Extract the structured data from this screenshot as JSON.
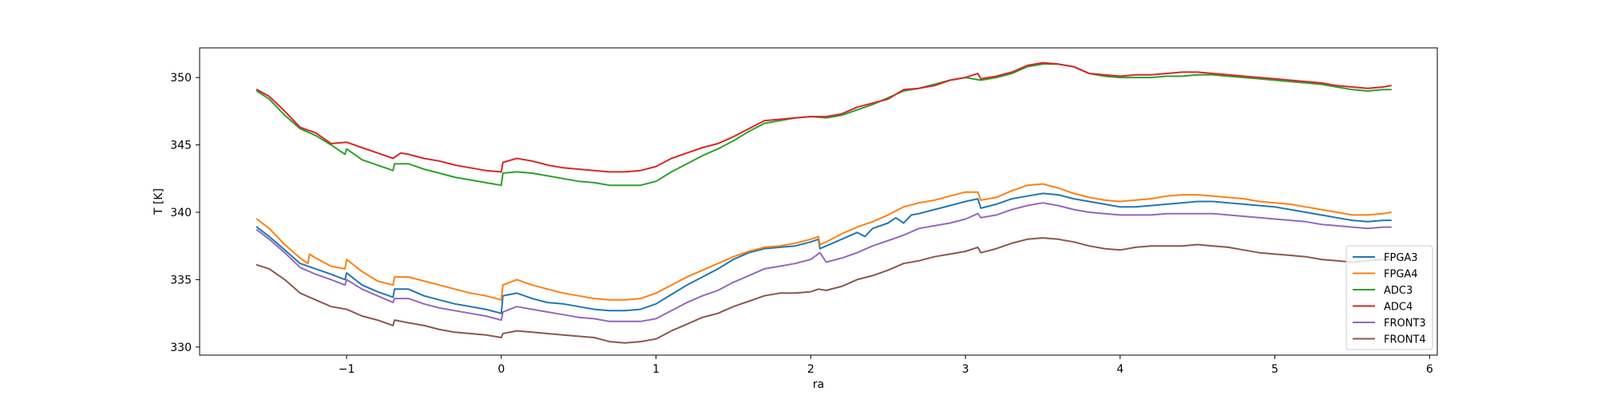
{
  "chart_data": {
    "type": "line",
    "title": "",
    "xlabel": "ra",
    "ylabel": "T [K]",
    "xlim": [
      -1.95,
      6.05
    ],
    "ylim": [
      329.4,
      352.2
    ],
    "xticks": [
      -1,
      0,
      1,
      2,
      3,
      4,
      5,
      6
    ],
    "xtick_labels": [
      "−1",
      "0",
      "1",
      "2",
      "3",
      "4",
      "5",
      "6"
    ],
    "yticks": [
      330,
      335,
      340,
      345,
      350
    ],
    "ytick_labels": [
      "330",
      "335",
      "340",
      "345",
      "350"
    ],
    "grid": false,
    "legend_position": "lower-right",
    "series": [
      {
        "name": "FPGA3",
        "color": "#1f77b4",
        "x": [
          -1.58,
          -1.5,
          -1.4,
          -1.3,
          -1.2,
          -1.1,
          -1.01,
          -1.0,
          -0.9,
          -0.8,
          -0.7,
          -0.69,
          -0.6,
          -0.5,
          -0.4,
          -0.3,
          -0.2,
          -0.1,
          0.0,
          0.01,
          0.1,
          0.2,
          0.3,
          0.4,
          0.5,
          0.6,
          0.7,
          0.8,
          0.9,
          1.0,
          1.1,
          1.2,
          1.3,
          1.4,
          1.5,
          1.6,
          1.7,
          1.8,
          1.9,
          2.0,
          2.05,
          2.06,
          2.1,
          2.2,
          2.3,
          2.35,
          2.4,
          2.5,
          2.55,
          2.6,
          2.65,
          2.7,
          2.8,
          2.9,
          3.0,
          3.08,
          3.1,
          3.2,
          3.3,
          3.4,
          3.5,
          3.6,
          3.7,
          3.8,
          3.9,
          4.0,
          4.1,
          4.2,
          4.3,
          4.4,
          4.5,
          4.6,
          4.7,
          4.8,
          4.9,
          5.0,
          5.1,
          5.2,
          5.3,
          5.4,
          5.5,
          5.6,
          5.7,
          5.75
        ],
        "y": [
          338.9,
          338.2,
          337.2,
          336.2,
          335.8,
          335.4,
          335.0,
          335.5,
          334.6,
          334.1,
          333.7,
          334.3,
          334.3,
          333.8,
          333.5,
          333.2,
          333.0,
          332.8,
          332.5,
          333.8,
          334.0,
          333.6,
          333.3,
          333.2,
          333.0,
          332.8,
          332.7,
          332.7,
          332.8,
          333.2,
          333.9,
          334.6,
          335.2,
          335.8,
          336.5,
          337.0,
          337.3,
          337.4,
          337.5,
          337.8,
          338.0,
          337.3,
          337.5,
          338.0,
          338.5,
          338.2,
          338.8,
          339.2,
          339.6,
          339.2,
          339.8,
          339.9,
          340.2,
          340.5,
          340.8,
          341.0,
          340.3,
          340.6,
          341.0,
          341.2,
          341.4,
          341.3,
          341.0,
          340.8,
          340.6,
          340.4,
          340.4,
          340.5,
          340.6,
          340.7,
          340.8,
          340.8,
          340.7,
          340.6,
          340.5,
          340.4,
          340.2,
          340.0,
          339.8,
          339.6,
          339.4,
          339.3,
          339.4,
          339.4
        ]
      },
      {
        "name": "FPGA4",
        "color": "#ff7f0e",
        "x": [
          -1.58,
          -1.5,
          -1.4,
          -1.3,
          -1.25,
          -1.24,
          -1.2,
          -1.1,
          -1.01,
          -1.0,
          -0.9,
          -0.8,
          -0.7,
          -0.69,
          -0.6,
          -0.5,
          -0.4,
          -0.3,
          -0.2,
          -0.1,
          0.0,
          0.01,
          0.1,
          0.2,
          0.3,
          0.4,
          0.5,
          0.6,
          0.7,
          0.8,
          0.9,
          1.0,
          1.1,
          1.2,
          1.3,
          1.4,
          1.5,
          1.6,
          1.7,
          1.8,
          1.9,
          2.0,
          2.05,
          2.06,
          2.1,
          2.2,
          2.3,
          2.4,
          2.5,
          2.6,
          2.7,
          2.8,
          2.9,
          3.0,
          3.08,
          3.1,
          3.2,
          3.3,
          3.4,
          3.5,
          3.6,
          3.7,
          3.8,
          3.9,
          4.0,
          4.1,
          4.2,
          4.3,
          4.4,
          4.5,
          4.6,
          4.7,
          4.8,
          4.9,
          5.0,
          5.1,
          5.2,
          5.3,
          5.4,
          5.5,
          5.6,
          5.7,
          5.75
        ],
        "y": [
          339.5,
          338.8,
          337.6,
          336.6,
          336.2,
          336.9,
          336.6,
          336.0,
          335.8,
          336.5,
          335.6,
          334.9,
          334.6,
          335.2,
          335.2,
          334.9,
          334.6,
          334.3,
          334.0,
          333.8,
          333.5,
          334.6,
          335.0,
          334.6,
          334.3,
          334.0,
          333.8,
          333.6,
          333.5,
          333.5,
          333.6,
          334.0,
          334.6,
          335.2,
          335.7,
          336.2,
          336.7,
          337.1,
          337.4,
          337.5,
          337.7,
          338.0,
          338.2,
          337.6,
          337.8,
          338.4,
          338.9,
          339.3,
          339.8,
          340.4,
          340.7,
          340.9,
          341.2,
          341.5,
          341.5,
          340.9,
          341.1,
          341.6,
          342.0,
          342.1,
          341.8,
          341.4,
          341.1,
          340.9,
          340.8,
          340.9,
          341.0,
          341.2,
          341.3,
          341.3,
          341.2,
          341.1,
          341.0,
          340.8,
          340.7,
          340.6,
          340.4,
          340.2,
          340.0,
          339.8,
          339.8,
          339.9,
          340.0
        ]
      },
      {
        "name": "ADC3",
        "color": "#2ca02c",
        "x": [
          -1.58,
          -1.5,
          -1.4,
          -1.3,
          -1.2,
          -1.1,
          -1.01,
          -1.0,
          -0.9,
          -0.8,
          -0.7,
          -0.69,
          -0.6,
          -0.5,
          -0.4,
          -0.3,
          -0.2,
          -0.1,
          0.0,
          0.01,
          0.1,
          0.2,
          0.3,
          0.4,
          0.5,
          0.6,
          0.7,
          0.8,
          0.9,
          1.0,
          1.1,
          1.2,
          1.3,
          1.4,
          1.5,
          1.6,
          1.7,
          1.8,
          1.9,
          2.0,
          2.1,
          2.2,
          2.3,
          2.4,
          2.5,
          2.6,
          2.7,
          2.8,
          2.9,
          3.0,
          3.1,
          3.2,
          3.3,
          3.4,
          3.5,
          3.6,
          3.7,
          3.8,
          3.9,
          4.0,
          4.1,
          4.2,
          4.3,
          4.4,
          4.5,
          4.6,
          4.7,
          4.8,
          4.9,
          5.0,
          5.1,
          5.2,
          5.3,
          5.4,
          5.5,
          5.6,
          5.7,
          5.75
        ],
        "y": [
          349.0,
          348.4,
          347.2,
          346.2,
          345.7,
          345.0,
          344.3,
          344.7,
          343.9,
          343.5,
          343.1,
          343.6,
          343.6,
          343.2,
          342.9,
          342.6,
          342.4,
          342.2,
          342.0,
          342.9,
          343.0,
          342.9,
          342.7,
          342.5,
          342.3,
          342.2,
          342.0,
          342.0,
          342.0,
          342.3,
          343.0,
          343.6,
          344.2,
          344.7,
          345.3,
          346.0,
          346.6,
          346.8,
          347.0,
          347.1,
          347.0,
          347.2,
          347.6,
          348.0,
          348.5,
          349.0,
          349.2,
          349.5,
          349.8,
          350.0,
          349.8,
          350.0,
          350.3,
          350.8,
          351.0,
          351.0,
          350.8,
          350.3,
          350.1,
          350.0,
          350.0,
          350.0,
          350.1,
          350.1,
          350.2,
          350.2,
          350.1,
          350.0,
          349.9,
          349.8,
          349.7,
          349.6,
          349.5,
          349.3,
          349.1,
          349.0,
          349.1,
          349.1
        ]
      },
      {
        "name": "ADC4",
        "color": "#d62728",
        "x": [
          -1.58,
          -1.5,
          -1.4,
          -1.3,
          -1.2,
          -1.1,
          -1.0,
          -0.9,
          -0.8,
          -0.7,
          -0.65,
          -0.6,
          -0.5,
          -0.4,
          -0.3,
          -0.2,
          -0.1,
          0.0,
          0.01,
          0.1,
          0.2,
          0.3,
          0.4,
          0.5,
          0.6,
          0.7,
          0.8,
          0.9,
          1.0,
          1.1,
          1.2,
          1.3,
          1.4,
          1.5,
          1.6,
          1.7,
          1.8,
          1.9,
          2.0,
          2.1,
          2.2,
          2.3,
          2.4,
          2.5,
          2.6,
          2.7,
          2.8,
          2.9,
          3.0,
          3.08,
          3.1,
          3.2,
          3.3,
          3.4,
          3.5,
          3.6,
          3.7,
          3.8,
          3.9,
          4.0,
          4.1,
          4.2,
          4.3,
          4.4,
          4.5,
          4.6,
          4.7,
          4.8,
          4.9,
          5.0,
          5.1,
          5.2,
          5.3,
          5.4,
          5.5,
          5.6,
          5.7,
          5.75
        ],
        "y": [
          349.1,
          348.6,
          347.5,
          346.3,
          345.9,
          345.1,
          345.2,
          344.8,
          344.4,
          344.0,
          344.4,
          344.3,
          344.0,
          343.8,
          343.5,
          343.3,
          343.1,
          343.0,
          343.7,
          344.0,
          343.8,
          343.5,
          343.3,
          343.2,
          343.1,
          343.0,
          343.0,
          343.1,
          343.4,
          344.0,
          344.4,
          344.8,
          345.1,
          345.6,
          346.2,
          346.8,
          346.9,
          347.0,
          347.1,
          347.1,
          347.3,
          347.8,
          348.1,
          348.4,
          349.1,
          349.2,
          349.4,
          349.8,
          350.0,
          350.3,
          349.9,
          350.1,
          350.4,
          350.9,
          351.1,
          351.0,
          350.8,
          350.3,
          350.2,
          350.1,
          350.2,
          350.2,
          350.3,
          350.4,
          350.4,
          350.3,
          350.2,
          350.1,
          350.0,
          349.9,
          349.8,
          349.7,
          349.6,
          349.4,
          349.3,
          349.2,
          349.3,
          349.4
        ]
      },
      {
        "name": "FRONT3",
        "color": "#9467bd",
        "x": [
          -1.58,
          -1.5,
          -1.4,
          -1.3,
          -1.2,
          -1.1,
          -1.01,
          -1.0,
          -0.9,
          -0.8,
          -0.7,
          -0.69,
          -0.6,
          -0.5,
          -0.4,
          -0.3,
          -0.2,
          -0.1,
          0.0,
          0.01,
          0.1,
          0.2,
          0.3,
          0.4,
          0.5,
          0.6,
          0.7,
          0.8,
          0.9,
          1.0,
          1.1,
          1.2,
          1.3,
          1.4,
          1.5,
          1.6,
          1.7,
          1.8,
          1.9,
          2.0,
          2.06,
          2.1,
          2.2,
          2.3,
          2.4,
          2.5,
          2.6,
          2.7,
          2.8,
          2.9,
          3.0,
          3.08,
          3.1,
          3.2,
          3.3,
          3.4,
          3.5,
          3.6,
          3.7,
          3.8,
          3.9,
          4.0,
          4.1,
          4.2,
          4.3,
          4.4,
          4.5,
          4.6,
          4.7,
          4.8,
          4.9,
          5.0,
          5.1,
          5.2,
          5.3,
          5.4,
          5.5,
          5.6,
          5.7,
          5.75
        ],
        "y": [
          338.7,
          338.0,
          337.0,
          335.9,
          335.4,
          335.0,
          334.6,
          335.0,
          334.3,
          333.8,
          333.3,
          333.6,
          333.6,
          333.2,
          332.9,
          332.7,
          332.5,
          332.3,
          332.0,
          332.6,
          333.0,
          332.8,
          332.6,
          332.4,
          332.2,
          332.1,
          331.9,
          331.9,
          331.9,
          332.1,
          332.7,
          333.3,
          333.8,
          334.2,
          334.8,
          335.3,
          335.8,
          336.0,
          336.2,
          336.5,
          337.0,
          336.3,
          336.6,
          337.0,
          337.5,
          337.9,
          338.3,
          338.8,
          339.0,
          339.2,
          339.5,
          339.9,
          339.6,
          339.8,
          340.2,
          340.5,
          340.7,
          340.5,
          340.2,
          340.0,
          339.9,
          339.8,
          339.8,
          339.8,
          339.9,
          339.9,
          339.9,
          339.9,
          339.8,
          339.7,
          339.6,
          339.5,
          339.4,
          339.3,
          339.1,
          339.0,
          338.9,
          338.8,
          338.9,
          338.9
        ]
      },
      {
        "name": "FRONT4",
        "color": "#8c564b",
        "x": [
          -1.58,
          -1.5,
          -1.4,
          -1.3,
          -1.2,
          -1.1,
          -1.0,
          -0.9,
          -0.8,
          -0.7,
          -0.69,
          -0.6,
          -0.5,
          -0.4,
          -0.3,
          -0.2,
          -0.1,
          0.0,
          0.01,
          0.1,
          0.2,
          0.3,
          0.4,
          0.5,
          0.6,
          0.7,
          0.8,
          0.9,
          1.0,
          1.1,
          1.2,
          1.3,
          1.4,
          1.5,
          1.6,
          1.7,
          1.8,
          1.9,
          2.0,
          2.05,
          2.1,
          2.2,
          2.3,
          2.4,
          2.5,
          2.6,
          2.7,
          2.8,
          2.9,
          3.0,
          3.08,
          3.1,
          3.2,
          3.3,
          3.4,
          3.5,
          3.6,
          3.7,
          3.8,
          3.9,
          4.0,
          4.1,
          4.2,
          4.3,
          4.4,
          4.5,
          4.6,
          4.7,
          4.8,
          4.9,
          5.0,
          5.1,
          5.2,
          5.3,
          5.4,
          5.5,
          5.6,
          5.7,
          5.75
        ],
        "y": [
          336.1,
          335.8,
          335.0,
          334.0,
          333.5,
          333.0,
          332.8,
          332.3,
          332.0,
          331.6,
          332.0,
          331.8,
          331.6,
          331.3,
          331.1,
          331.0,
          330.9,
          330.7,
          331.0,
          331.2,
          331.1,
          331.0,
          330.9,
          330.8,
          330.7,
          330.4,
          330.3,
          330.4,
          330.6,
          331.2,
          331.7,
          332.2,
          332.5,
          333.0,
          333.4,
          333.8,
          334.0,
          334.0,
          334.1,
          334.3,
          334.2,
          334.5,
          335.0,
          335.3,
          335.7,
          336.2,
          336.4,
          336.7,
          336.9,
          337.1,
          337.4,
          337.0,
          337.3,
          337.7,
          338.0,
          338.1,
          338.0,
          337.8,
          337.5,
          337.3,
          337.2,
          337.4,
          337.5,
          337.5,
          337.5,
          337.6,
          337.5,
          337.4,
          337.2,
          337.0,
          336.9,
          336.8,
          336.7,
          336.5,
          336.4,
          336.3,
          336.4,
          336.5,
          336.5
        ]
      }
    ]
  }
}
